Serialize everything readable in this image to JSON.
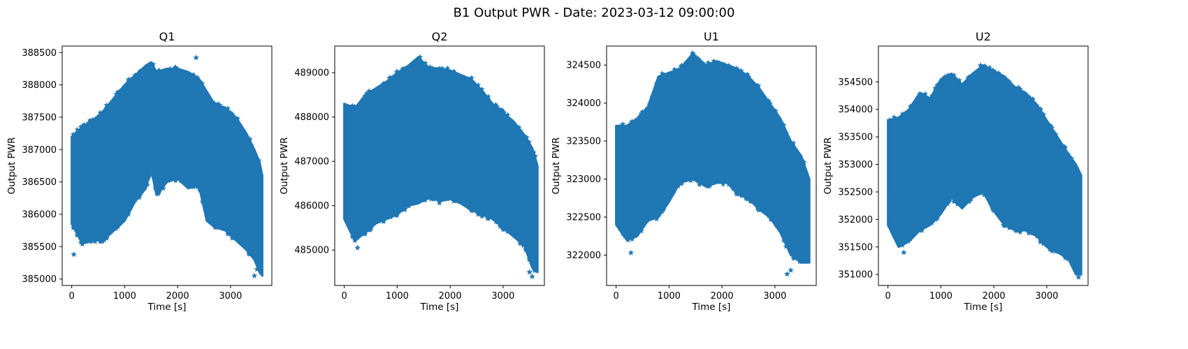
{
  "figure": {
    "title": "B1 Output PWR - Date: 2023-03-12 09:00:00"
  },
  "chart_data": [
    {
      "type": "scatter",
      "title": "Q1",
      "xlabel": "Time [s]",
      "ylabel": "Output PWR",
      "marker": "star",
      "color": "#1f77b4",
      "xlim": [
        -180,
        3780
      ],
      "ylim": [
        384900,
        388600
      ],
      "xticks": [
        0,
        1000,
        2000,
        3000
      ],
      "yticks": [
        385000,
        385500,
        386000,
        386500,
        387000,
        387500,
        388000,
        388500
      ],
      "grid": false,
      "series": [
        {
          "x": [
            0,
            200,
            400,
            600,
            800,
            1000,
            1200,
            1400,
            1500,
            1600,
            1800,
            2000,
            2200,
            2400,
            2550,
            2700,
            2900,
            3100,
            3300,
            3450,
            3550,
            3600
          ],
          "y_upper": [
            387200,
            387350,
            387450,
            387600,
            387800,
            388000,
            388150,
            388300,
            388350,
            388200,
            388250,
            388250,
            388200,
            388100,
            387900,
            387700,
            387650,
            387500,
            387250,
            387000,
            386800,
            386600
          ],
          "y_lower": [
            385850,
            385550,
            385600,
            385600,
            385750,
            385900,
            386200,
            386400,
            386700,
            386300,
            386500,
            386550,
            386400,
            386450,
            385900,
            385800,
            385750,
            385600,
            385450,
            385300,
            385100,
            385050
          ]
        }
      ],
      "outliers": [
        [
          40,
          385380
        ],
        [
          2350,
          388420
        ],
        [
          3450,
          385050
        ],
        [
          3500,
          385150
        ]
      ]
    },
    {
      "type": "scatter",
      "title": "Q2",
      "xlabel": "Time [s]",
      "ylabel": "Output PWR",
      "marker": "star",
      "color": "#1f77b4",
      "xlim": [
        -180,
        3780
      ],
      "ylim": [
        484200,
        489600
      ],
      "xticks": [
        0,
        1000,
        2000,
        3000
      ],
      "yticks": [
        485000,
        486000,
        487000,
        488000,
        489000
      ],
      "grid": false,
      "series": [
        {
          "x": [
            0,
            200,
            400,
            600,
            800,
            1000,
            1200,
            1400,
            1600,
            1800,
            2000,
            2200,
            2400,
            2600,
            2800,
            3000,
            3200,
            3400,
            3550,
            3650
          ],
          "y_upper": [
            488300,
            488200,
            488500,
            488650,
            488800,
            489000,
            489150,
            489350,
            489100,
            489100,
            489050,
            488950,
            488850,
            488600,
            488300,
            488100,
            487900,
            487600,
            487300,
            486900
          ],
          "y_lower": [
            485700,
            485200,
            485400,
            485600,
            485700,
            485800,
            486000,
            486050,
            486200,
            486100,
            486150,
            486050,
            485900,
            485800,
            485700,
            485500,
            485300,
            485100,
            484600,
            484500
          ]
        }
      ],
      "outliers": [
        [
          250,
          485050
        ],
        [
          1430,
          489350
        ],
        [
          3500,
          484500
        ],
        [
          3550,
          484400
        ]
      ]
    },
    {
      "type": "scatter",
      "title": "U1",
      "xlabel": "Time [s]",
      "ylabel": "Output PWR",
      "marker": "star",
      "color": "#1f77b4",
      "xlim": [
        -180,
        3780
      ],
      "ylim": [
        321600,
        324750
      ],
      "xticks": [
        0,
        1000,
        2000,
        3000
      ],
      "yticks": [
        322000,
        322500,
        323000,
        323500,
        324000,
        324500
      ],
      "grid": false,
      "series": [
        {
          "x": [
            0,
            200,
            400,
            600,
            800,
            1000,
            1200,
            1450,
            1700,
            1900,
            2100,
            2300,
            2500,
            2700,
            2900,
            3100,
            3300,
            3500,
            3650
          ],
          "y_upper": [
            323700,
            323700,
            323800,
            323950,
            324350,
            324400,
            324450,
            324650,
            324500,
            324550,
            324500,
            324450,
            324350,
            324200,
            324000,
            323800,
            323500,
            323300,
            323000
          ],
          "y_lower": [
            322400,
            322200,
            322250,
            322450,
            322500,
            322700,
            322950,
            323000,
            322900,
            322950,
            322950,
            322800,
            322750,
            322600,
            322500,
            322300,
            322000,
            321900,
            321900
          ]
        }
      ],
      "outliers": [
        [
          280,
          322030
        ],
        [
          1450,
          324640
        ],
        [
          3230,
          321750
        ],
        [
          3300,
          321800
        ]
      ]
    },
    {
      "type": "scatter",
      "title": "U2",
      "xlabel": "Time [s]",
      "ylabel": "Output PWR",
      "marker": "star",
      "color": "#1f77b4",
      "xlim": [
        -180,
        3780
      ],
      "ylim": [
        350800,
        355150
      ],
      "xticks": [
        0,
        1000,
        2000,
        3000
      ],
      "yticks": [
        351000,
        351500,
        352000,
        352500,
        353000,
        353500,
        354000,
        354500
      ],
      "grid": false,
      "series": [
        {
          "x": [
            0,
            200,
            400,
            600,
            800,
            1000,
            1200,
            1400,
            1600,
            1800,
            2000,
            2200,
            2400,
            2600,
            2800,
            3000,
            3200,
            3400,
            3550,
            3650
          ],
          "y_upper": [
            353800,
            353850,
            354000,
            354300,
            354200,
            354550,
            354650,
            354450,
            354650,
            354800,
            354700,
            354600,
            354400,
            354300,
            354100,
            353800,
            353500,
            353200,
            353000,
            352800
          ],
          "y_lower": [
            351900,
            351500,
            351600,
            351800,
            351900,
            352100,
            352400,
            352200,
            352400,
            352500,
            352150,
            351900,
            351800,
            351800,
            351700,
            351500,
            351400,
            351300,
            351000,
            351000
          ]
        }
      ],
      "outliers": [
        [
          300,
          351400
        ],
        [
          1750,
          354800
        ],
        [
          3600,
          350950
        ],
        [
          3550,
          351100
        ]
      ]
    }
  ]
}
